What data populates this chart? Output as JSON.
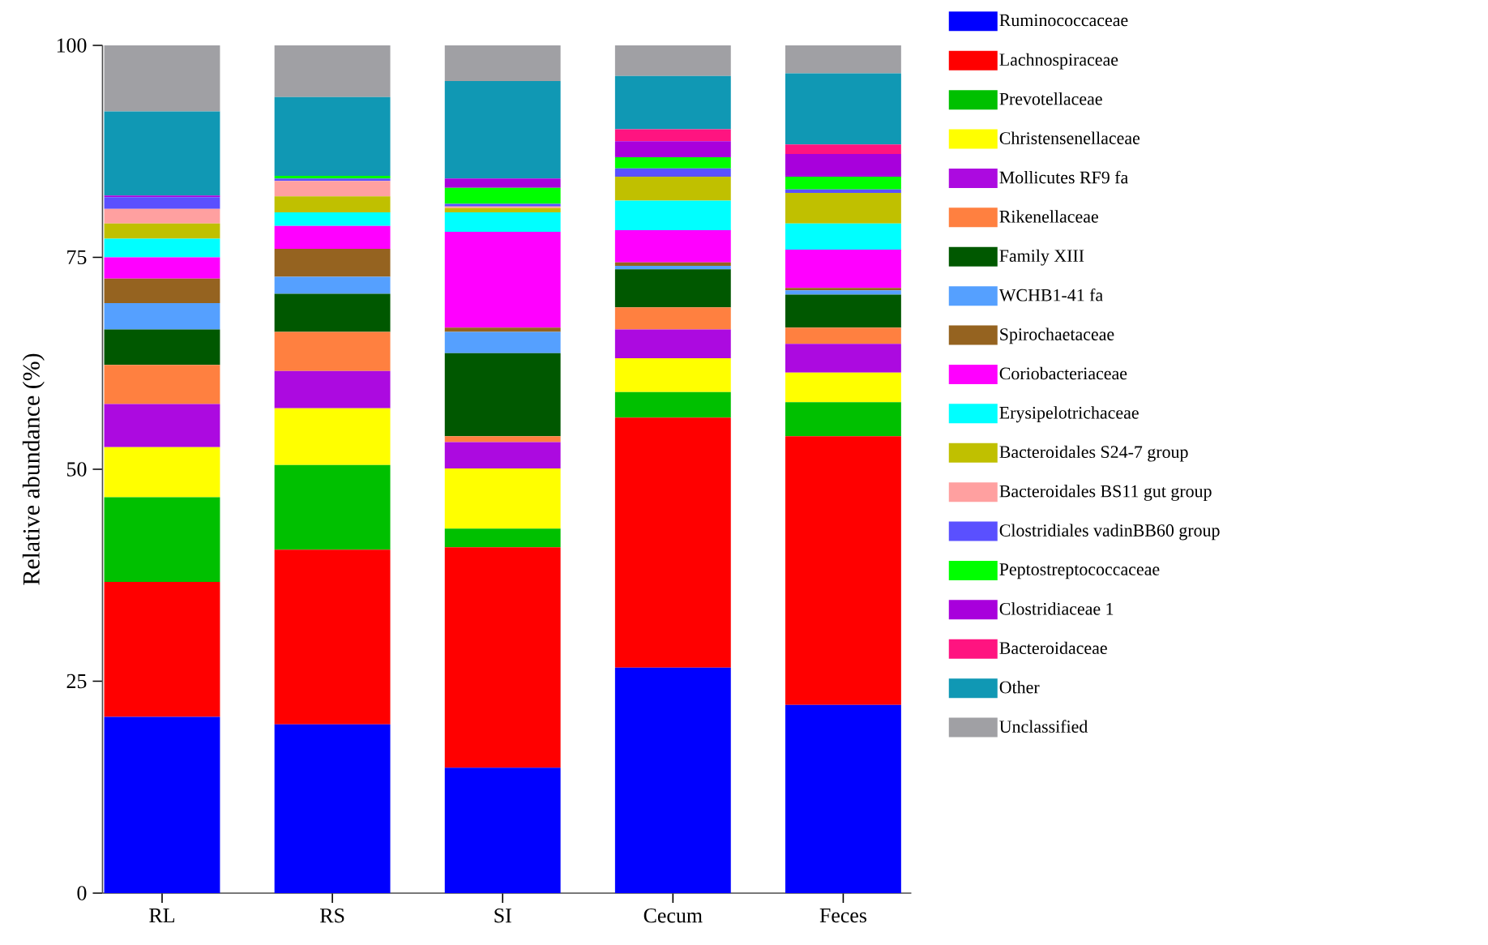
{
  "chart_data": {
    "type": "bar",
    "stacked": true,
    "ylabel": "Relative abundance (%)",
    "categories": [
      "RL",
      "RS",
      "SI",
      "Cecum",
      "Feces"
    ],
    "ylim": [
      0,
      100
    ],
    "yticks": [
      0,
      25,
      50,
      75,
      100
    ],
    "legend": "right",
    "series": [
      {
        "name": "Ruminococcaceae",
        "color": "#0000ff",
        "values": [
          20.8,
          19.9,
          14.8,
          26.6,
          22.2
        ]
      },
      {
        "name": "Lachnospiraceae",
        "color": "#ff0000",
        "values": [
          15.9,
          20.6,
          26.0,
          29.5,
          31.7
        ]
      },
      {
        "name": "Prevotellaceae",
        "color": "#00c000",
        "values": [
          10.0,
          10.0,
          2.2,
          3.0,
          4.0
        ]
      },
      {
        "name": "Christensenellaceae",
        "color": "#ffff00",
        "values": [
          5.9,
          6.7,
          7.1,
          4.0,
          3.5
        ]
      },
      {
        "name": "Mollicutes RF9 fa",
        "color": "#ac0ae0",
        "values": [
          5.1,
          4.4,
          3.1,
          3.4,
          3.4
        ]
      },
      {
        "name": "Rikenellaceae",
        "color": "#ff8040",
        "values": [
          4.6,
          4.6,
          0.7,
          2.6,
          1.9
        ]
      },
      {
        "name": "Family XIII",
        "color": "#005800",
        "values": [
          4.2,
          4.5,
          9.8,
          4.5,
          3.9
        ]
      },
      {
        "name": "WCHB1-41 fa",
        "color": "#55a0ff",
        "values": [
          3.1,
          2.0,
          2.5,
          0.4,
          0.5
        ]
      },
      {
        "name": "Spirochaetaceae",
        "color": "#956320",
        "values": [
          2.9,
          3.3,
          0.5,
          0.4,
          0.3
        ]
      },
      {
        "name": "Coriobacteriaceae",
        "color": "#ff00ff",
        "values": [
          2.5,
          2.7,
          11.3,
          3.8,
          4.5
        ]
      },
      {
        "name": "Erysipelotrichaceae",
        "color": "#00ffff",
        "values": [
          2.2,
          1.6,
          2.3,
          3.5,
          3.1
        ]
      },
      {
        "name": "Bacteroidales S24-7 group",
        "color": "#c0c000",
        "values": [
          1.8,
          1.9,
          0.5,
          2.8,
          3.6
        ]
      },
      {
        "name": "Bacteroidales BS11 gut group",
        "color": "#ffa0a0",
        "values": [
          1.7,
          1.8,
          0.2,
          0,
          0
        ]
      },
      {
        "name": "Clostridiales vadinBB60 group",
        "color": "#5a50ff",
        "values": [
          1.4,
          0.3,
          0.3,
          1.0,
          0.4
        ]
      },
      {
        "name": "Peptostreptococcaceae",
        "color": "#00ff00",
        "values": [
          0,
          0.3,
          1.9,
          1.3,
          1.5
        ]
      },
      {
        "name": "Clostridiaceae 1",
        "color": "#a800dc",
        "values": [
          0.2,
          0,
          1.1,
          1.9,
          2.7
        ]
      },
      {
        "name": "Bacteroidaceae",
        "color": "#ff1480",
        "values": [
          0,
          0,
          0,
          1.4,
          1.1
        ]
      },
      {
        "name": "Other",
        "color": "#1098b4",
        "values": [
          9.9,
          9.3,
          11.5,
          6.3,
          8.4
        ]
      },
      {
        "name": "Unclassified",
        "color": "#a0a0a4",
        "values": [
          7.8,
          6.1,
          4.2,
          3.6,
          3.3
        ]
      }
    ]
  }
}
